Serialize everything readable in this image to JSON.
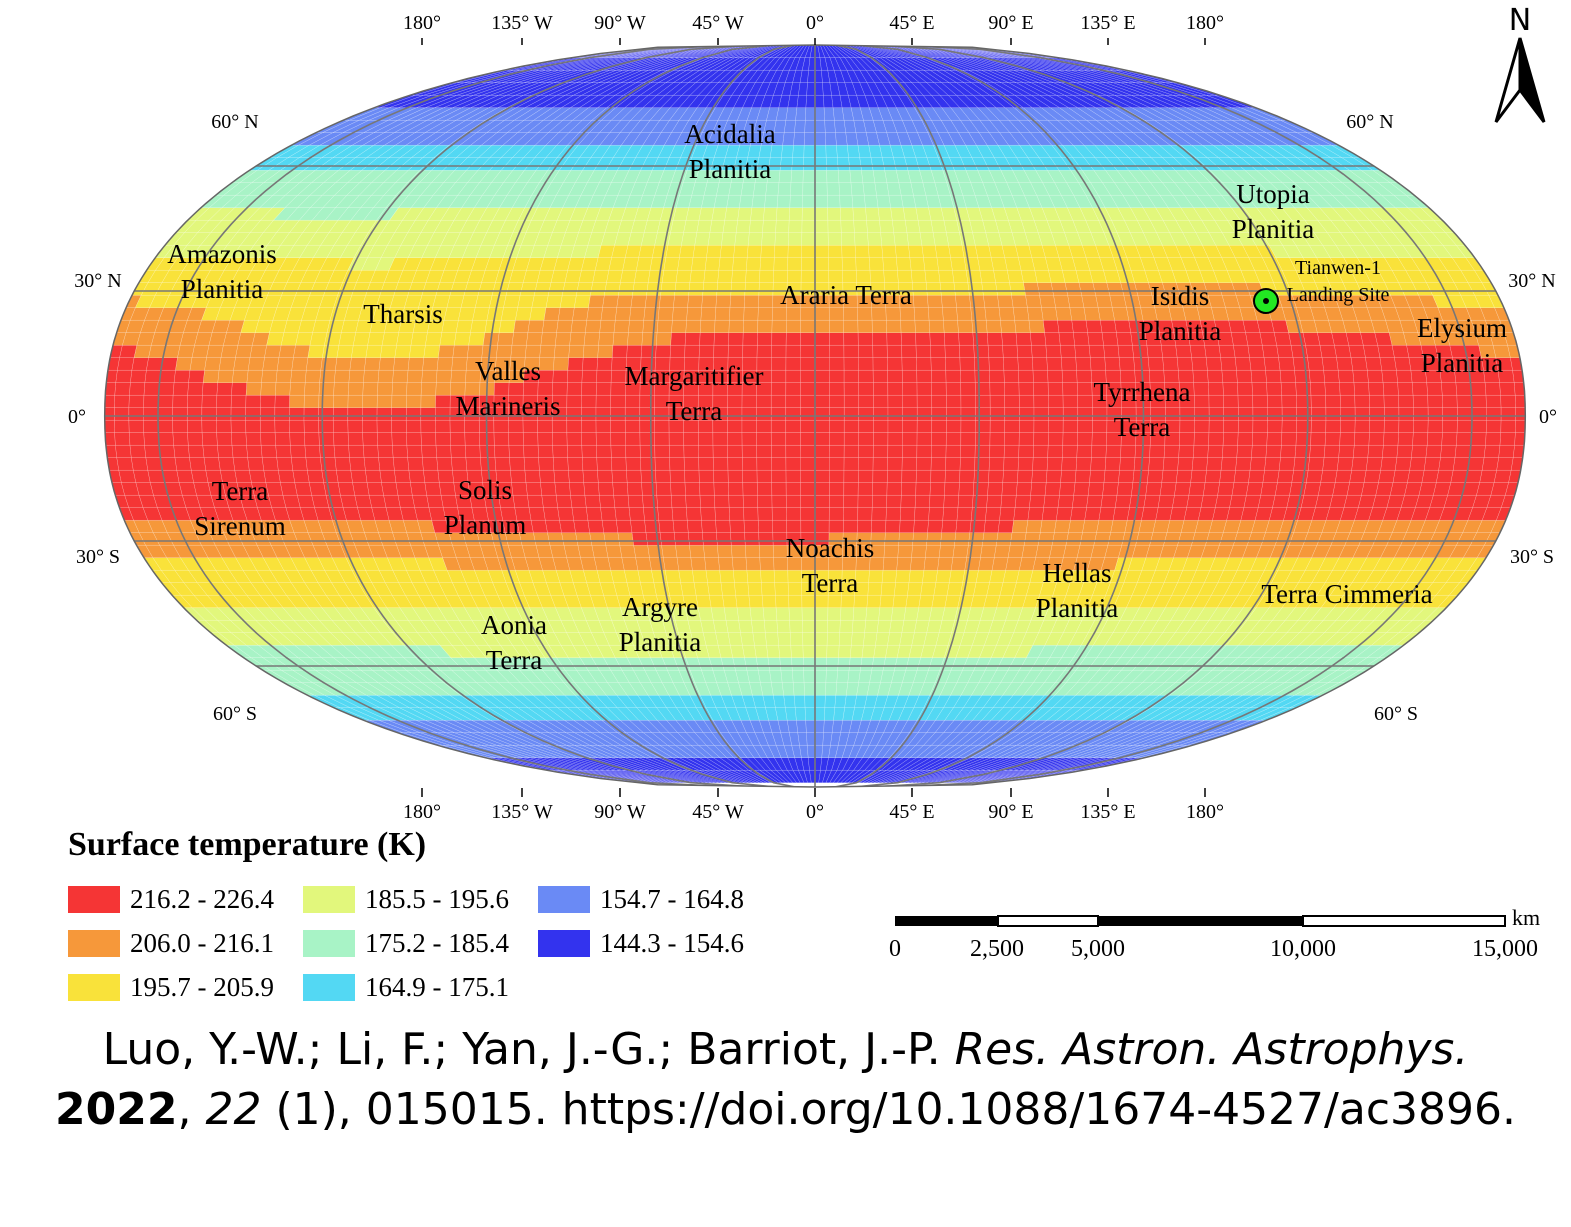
{
  "map": {
    "longitude_labels": [
      "180°",
      "135° W",
      "90° W",
      "45° W",
      "0°",
      "45° E",
      "90° E",
      "135° E",
      "180°"
    ],
    "latitude_labels": {
      "n60": "60° N",
      "n30": "30° N",
      "eq": "0°",
      "s30": "30° S",
      "s60": "60° S"
    },
    "north_label": "N",
    "regions": [
      {
        "name": "acidalia",
        "lines": [
          "Acidalia",
          "Planitia"
        ]
      },
      {
        "name": "utopia",
        "lines": [
          "Utopia",
          "Planitia"
        ]
      },
      {
        "name": "amazonis",
        "lines": [
          "Amazonis",
          "Planitia"
        ]
      },
      {
        "name": "tharsis",
        "lines": [
          "Tharsis"
        ]
      },
      {
        "name": "araria",
        "lines": [
          "Araria Terra"
        ]
      },
      {
        "name": "isidis",
        "lines": [
          "Isidis",
          "Planitia"
        ]
      },
      {
        "name": "elysium",
        "lines": [
          "Elysium",
          "Planitia"
        ]
      },
      {
        "name": "valles",
        "lines": [
          "Valles",
          "Marineris"
        ]
      },
      {
        "name": "margaritifer",
        "lines": [
          "Margaritifier",
          "Terra"
        ]
      },
      {
        "name": "tyrrhena",
        "lines": [
          "Tyrrhena",
          "Terra"
        ]
      },
      {
        "name": "sirenum",
        "lines": [
          "Terra",
          "Sirenum"
        ]
      },
      {
        "name": "solis",
        "lines": [
          "Solis",
          "Planum"
        ]
      },
      {
        "name": "noachis",
        "lines": [
          "Noachis",
          "Terra"
        ]
      },
      {
        "name": "hellas",
        "lines": [
          "Hellas",
          "Planitia"
        ]
      },
      {
        "name": "cimmeria",
        "lines": [
          "Terra Cimmeria"
        ]
      },
      {
        "name": "argyre",
        "lines": [
          "Argyre",
          "Planitia"
        ]
      },
      {
        "name": "aonia",
        "lines": [
          "Aonia",
          "Terra"
        ]
      }
    ],
    "landing_site": {
      "lines": [
        "Tianwen-1",
        "Landing Site"
      ],
      "lon": 110.3,
      "lat": 25.1
    }
  },
  "legend": {
    "title": "Surface temperature (K)",
    "classes": [
      {
        "label": "216.2 - 226.4",
        "color": "#f53535"
      },
      {
        "label": "185.5 - 195.6",
        "color": "#e2f77c"
      },
      {
        "label": "154.7 - 164.8",
        "color": "#6a8af5"
      },
      {
        "label": "206.0 - 216.1",
        "color": "#f6983a"
      },
      {
        "label": "175.2 - 185.4",
        "color": "#a8f3c6"
      },
      {
        "label": "144.3 - 154.6",
        "color": "#3333ee"
      },
      {
        "label": "195.7 - 205.9",
        "color": "#f9e23a"
      },
      {
        "label": "164.9 - 175.1",
        "color": "#53d8f3"
      }
    ]
  },
  "scale_bar": {
    "unit": "km",
    "ticks": [
      "0",
      "2,500",
      "5,000",
      "10,000",
      "15,000"
    ]
  },
  "citation": {
    "authors": "Luo, Y.-W.; Li, F.; Yan, J.-G.; Barriot, J.-P. ",
    "journal": "Res. Astron. Astrophys.",
    "year": "2022",
    "sep1": ", ",
    "volume": "22",
    "rest": " (1), 015015. https://doi.org/10.1088/1674-4527/ac3896."
  }
}
